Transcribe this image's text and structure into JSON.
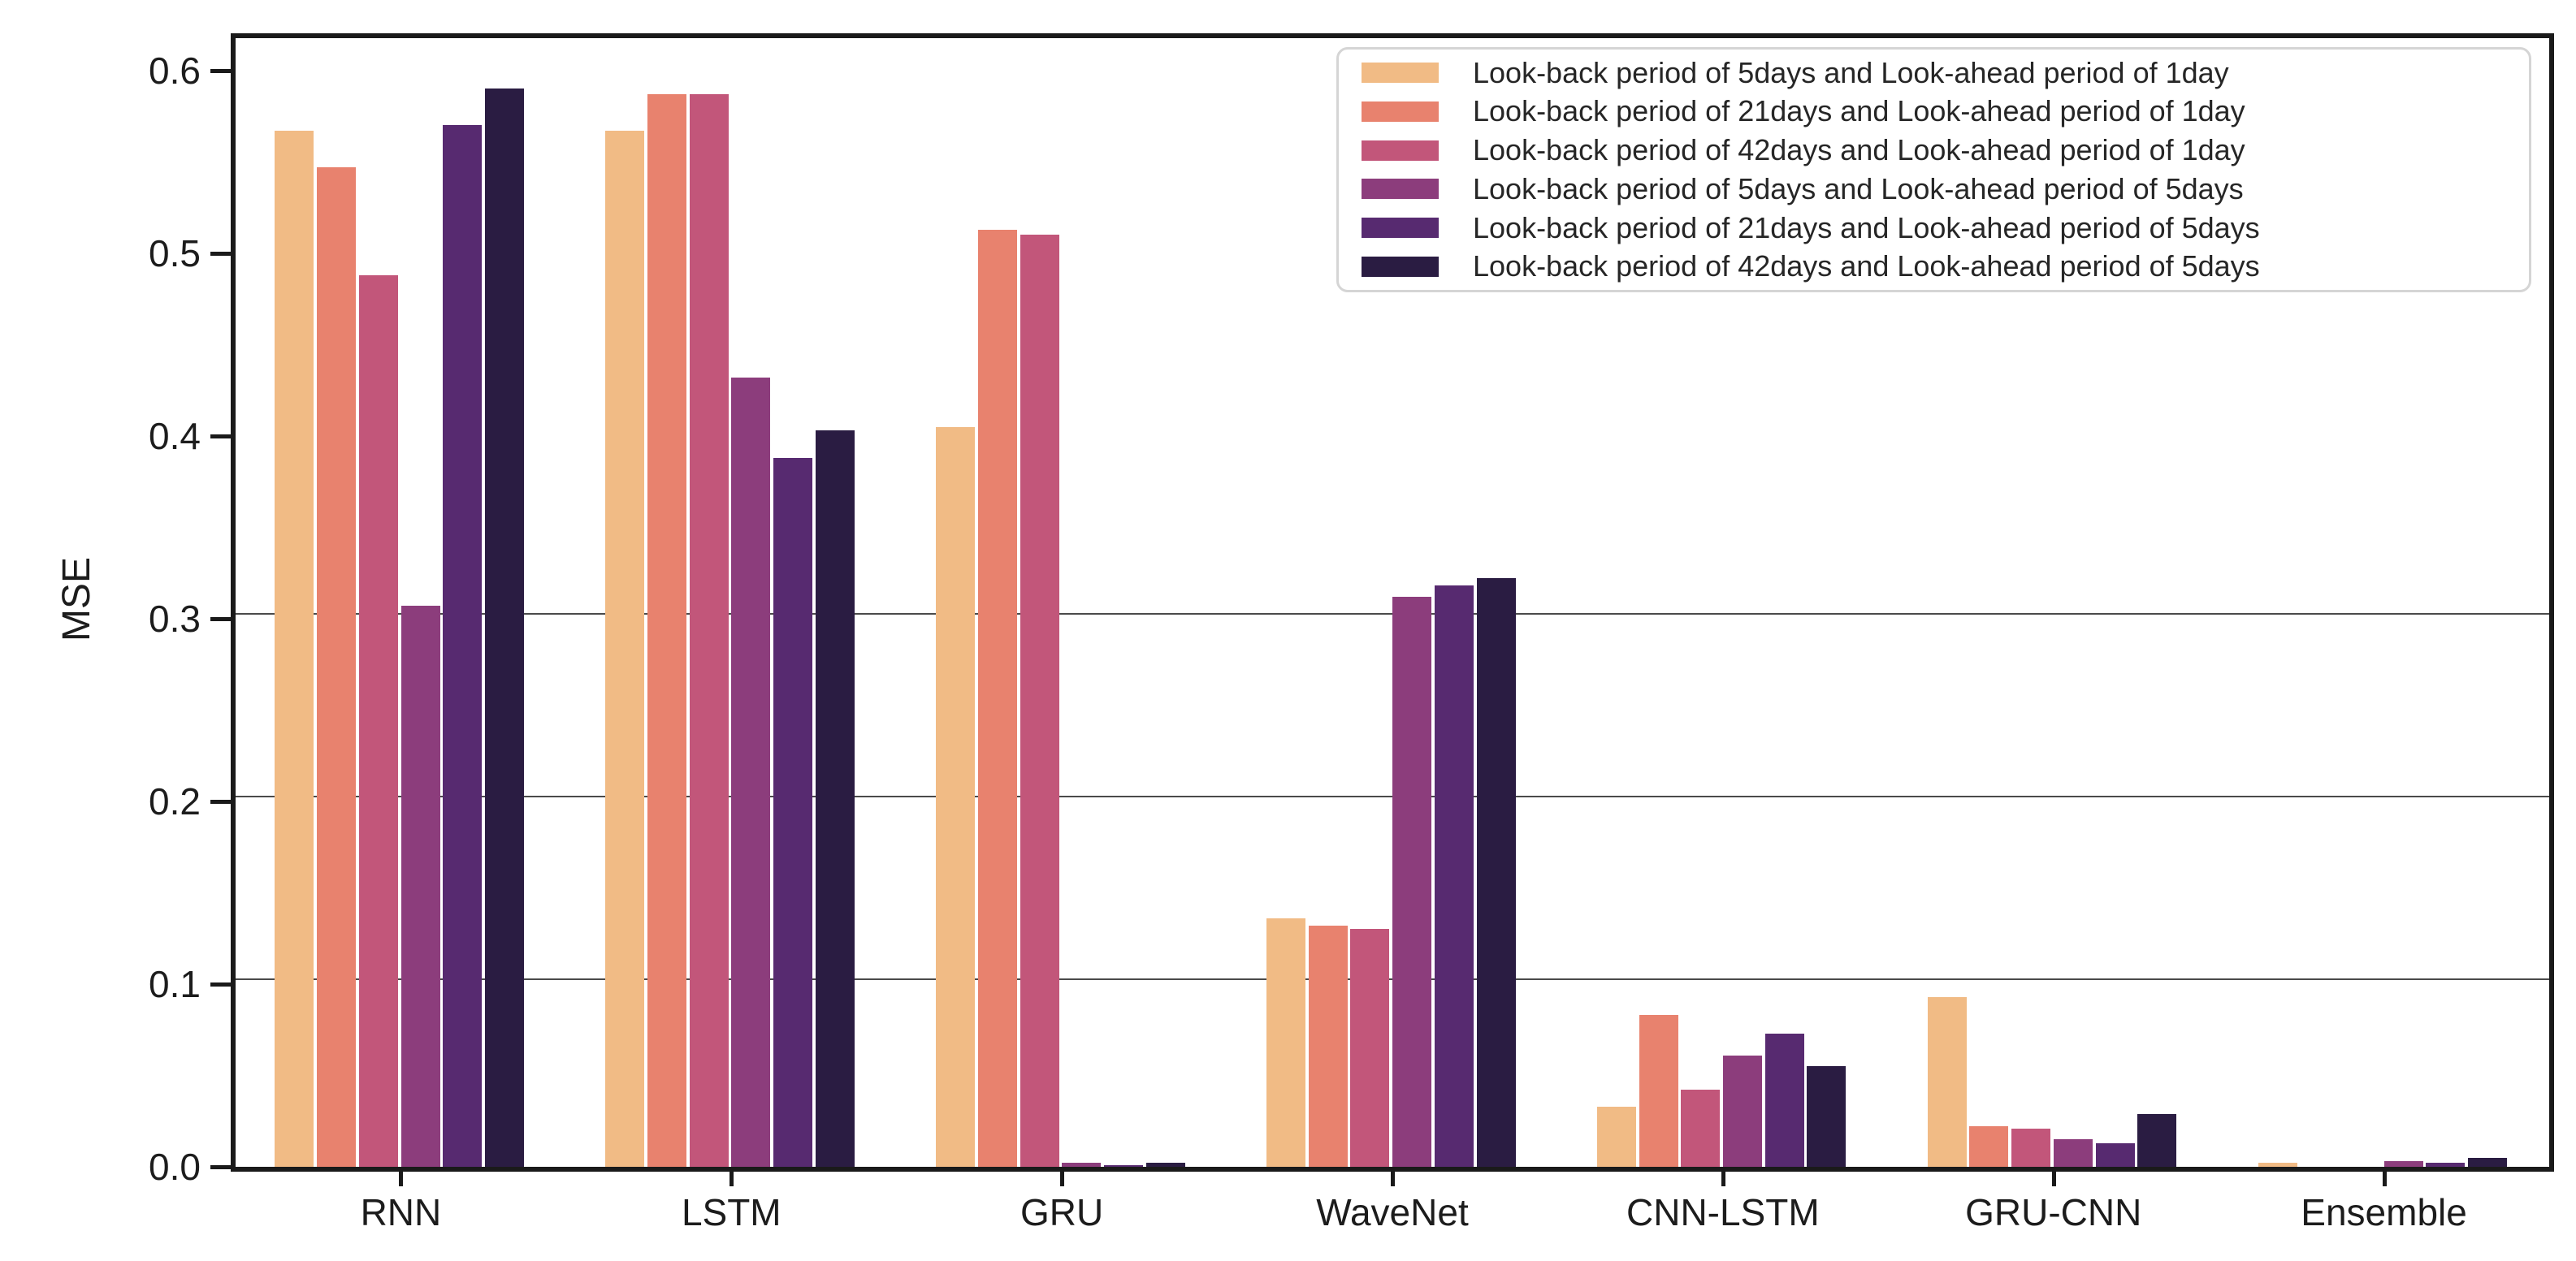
{
  "chart_data": {
    "type": "bar",
    "title": "",
    "xlabel": "",
    "ylabel": "MSE",
    "categories": [
      "RNN",
      "LSTM",
      "GRU",
      "WaveNet",
      "CNN-LSTM",
      "GRU-CNN",
      "Ensemble"
    ],
    "series": [
      {
        "name": "Look-back period of 5days and Look-ahead period of 1day",
        "color": "#f1bb85",
        "values": [
          0.567,
          0.567,
          0.405,
          0.136,
          0.033,
          0.093,
          0.002
        ]
      },
      {
        "name": "Look-back period of 21days and Look-ahead period of 1day",
        "color": "#e8826e",
        "values": [
          0.547,
          0.587,
          0.513,
          0.132,
          0.083,
          0.022,
          0.0
        ]
      },
      {
        "name": "Look-back period of 42days and Look-ahead period of 1day",
        "color": "#c2567a",
        "values": [
          0.488,
          0.587,
          0.51,
          0.13,
          0.042,
          0.021,
          0.0
        ]
      },
      {
        "name": "Look-back period of 5days and Look-ahead period of 5days",
        "color": "#8c3d7c",
        "values": [
          0.307,
          0.432,
          0.002,
          0.312,
          0.061,
          0.015,
          0.003
        ]
      },
      {
        "name": "Look-back period of 21days and Look-ahead period of 5days",
        "color": "#572a70",
        "values": [
          0.57,
          0.388,
          0.001,
          0.318,
          0.073,
          0.013,
          0.002
        ]
      },
      {
        "name": "Look-back period of 42days and Look-ahead period of 5days",
        "color": "#2a1c42",
        "values": [
          0.59,
          0.403,
          0.002,
          0.322,
          0.055,
          0.029,
          0.005
        ]
      }
    ],
    "ylim": [
      0.0,
      0.618
    ],
    "yticks": [
      0.0,
      0.1,
      0.2,
      0.3,
      0.4,
      0.5,
      0.6
    ],
    "ytick_labels": [
      "0.0",
      "0.1",
      "0.2",
      "0.3",
      "0.4",
      "0.5",
      "0.6"
    ],
    "gridlines_at": [
      0.1,
      0.2,
      0.3
    ],
    "grid": "horizontal lines at 0.1, 0.2, 0.3 only",
    "legend_position": "upper right",
    "bar_outline": "none, thin white gaps between bars"
  },
  "colors": {
    "background": "#ffffff",
    "axis_spine": "#1a1a1a",
    "tick_text": "#1c1c1c",
    "grid_line": "#4a4a4a",
    "legend_border": "#d5d5d5",
    "legend_text": "#262626"
  }
}
